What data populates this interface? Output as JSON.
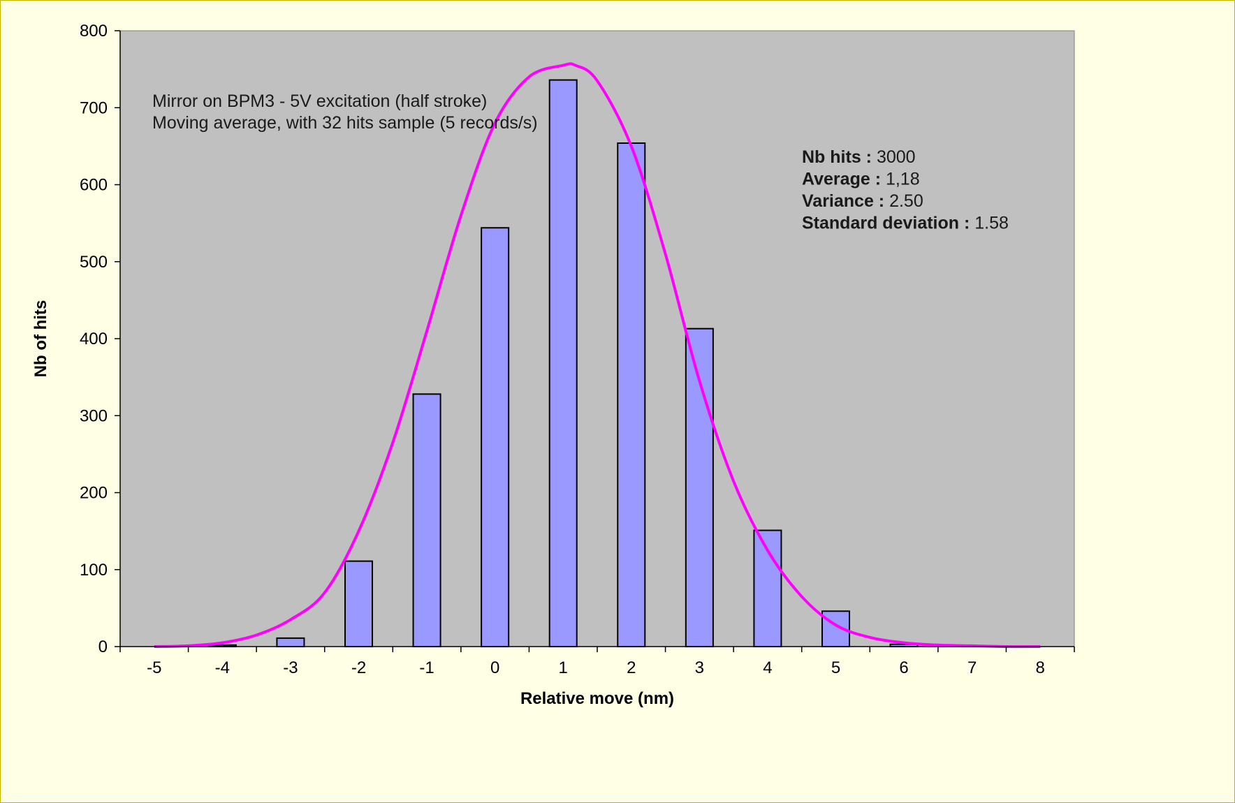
{
  "chart_data": {
    "type": "bar",
    "xlabel": "Relative move (nm)",
    "ylabel": "Nb of hits",
    "ylim": [
      0,
      800
    ],
    "yticks": [
      "0",
      "100",
      "200",
      "300",
      "400",
      "500",
      "600",
      "700",
      "800"
    ],
    "x_ticks": [
      "-5",
      "-4",
      "-3",
      "-2",
      "-1",
      "0",
      "1",
      "2",
      "3",
      "4",
      "5",
      "6",
      "7",
      "8"
    ],
    "x": [
      -5,
      -4,
      -3,
      -2,
      -1,
      0,
      1,
      2,
      3,
      4,
      5,
      6,
      7,
      8
    ],
    "values": [
      0,
      2,
      11,
      111,
      328,
      544,
      736,
      654,
      413,
      151,
      46,
      3,
      0,
      0
    ],
    "fit_curve": {
      "type": "gaussian",
      "x": [
        -5,
        -4.5,
        -4,
        -3.5,
        -3,
        -2.5,
        -2,
        -1.5,
        -1,
        -0.5,
        0,
        0.5,
        1,
        1.18,
        1.5,
        2,
        2.5,
        3,
        3.5,
        4,
        4.5,
        5,
        5.5,
        6,
        6.5,
        7,
        7.5,
        8
      ],
      "y": [
        0,
        1,
        5,
        15,
        35,
        70,
        150,
        265,
        410,
        560,
        680,
        740,
        755,
        755,
        735,
        650,
        510,
        345,
        215,
        125,
        65,
        28,
        12,
        5,
        2,
        1,
        0,
        0
      ]
    },
    "grid": false,
    "colors": {
      "bar_fill": "#9999ff",
      "bar_stroke": "#000000",
      "curve": "#ff00ff",
      "plot_background": "#c0c0c0",
      "frame_background": "#ffffe6",
      "frame_border": "#c8b400"
    },
    "annotations": {
      "line1": "Mirror on BPM3 - 5V excitation (half stroke)",
      "line2": "Moving average, with 32 hits sample (5 records/s)"
    },
    "stats": [
      {
        "label": "Nb hits :",
        "value": "3000"
      },
      {
        "label": "Average :",
        "value": "1,18"
      },
      {
        "label": "Variance :",
        "value": "2.50"
      },
      {
        "label": "Standard deviation :",
        "value": "1.58"
      }
    ]
  }
}
